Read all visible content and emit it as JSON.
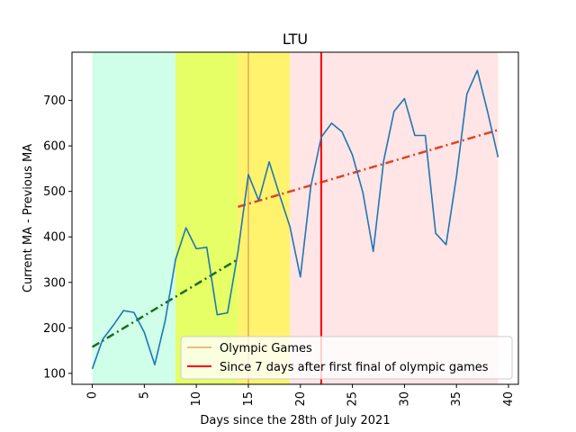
{
  "chart_data": {
    "type": "line",
    "title": "LTU",
    "xlabel": "Days since the 28th of July 2021",
    "ylabel": "Current MA - Previous MA",
    "xlim": [
      -1.95,
      40.95
    ],
    "ylim": [
      76,
      806
    ],
    "xticks": [
      0,
      5,
      10,
      15,
      20,
      25,
      30,
      35,
      40
    ],
    "yticks": [
      100,
      200,
      300,
      400,
      500,
      600,
      700
    ],
    "grid": false,
    "legend_position": "lower-right",
    "x": [
      0,
      1,
      2,
      3,
      4,
      5,
      6,
      7,
      8,
      9,
      10,
      11,
      12,
      13,
      14,
      15,
      16,
      17,
      18,
      19,
      20,
      21,
      22,
      23,
      24,
      25,
      26,
      27,
      28,
      29,
      30,
      31,
      32,
      33,
      34,
      35,
      36,
      37,
      38,
      39
    ],
    "series": [
      {
        "color": "#1f77b4",
        "values": [
          110,
          175,
          205,
          238,
          234,
          190,
          119,
          215,
          350,
          420,
          374,
          377,
          229,
          233,
          367,
          537,
          480,
          565,
          492,
          422,
          312,
          511,
          619,
          650,
          631,
          580,
          498,
          368,
          567,
          676,
          704,
          623,
          623,
          408,
          383,
          533,
          714,
          766,
          674,
          575
        ]
      }
    ],
    "trend_lines": [
      {
        "x": [
          0,
          14
        ],
        "y": [
          158,
          351
        ],
        "color": "#1a6b1a",
        "style": "dash-dot"
      },
      {
        "x": [
          14,
          39
        ],
        "y": [
          466,
          635
        ],
        "color": "#e0412a",
        "style": "dash-dot"
      }
    ],
    "shaded_regions": [
      {
        "x_start": 0,
        "x_end": 8,
        "color": "#cfffe9"
      },
      {
        "x_start": 8,
        "x_end": 14,
        "color": "#e6ff66"
      },
      {
        "x_start": 14,
        "x_end": 19,
        "color": "#fff36e"
      },
      {
        "x_start": 19,
        "x_end": 39,
        "color": "#ffe5e5"
      }
    ],
    "vertical_lines": [
      {
        "x": 15,
        "color": "#e0aa55",
        "label": "Olympic Games"
      },
      {
        "x": 22,
        "color": "#ff0000",
        "label": "Since 7 days after first final of olympic games"
      }
    ]
  }
}
